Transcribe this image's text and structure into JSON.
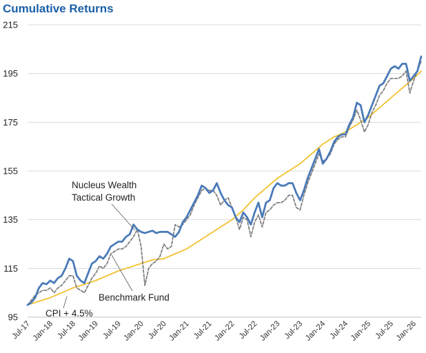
{
  "chart_data": {
    "type": "line",
    "title": "Cumulative Returns",
    "xlabel": "",
    "ylabel": "",
    "ylim": [
      95,
      215
    ],
    "yticks": [
      95,
      115,
      135,
      155,
      175,
      195,
      215
    ],
    "x_tick_labels": [
      "Jul-17",
      "Jan-18",
      "Jul-18",
      "Jan-19",
      "Jul-19",
      "Jan-20",
      "Jul-20",
      "Jan-21",
      "Jul-21",
      "Jan-22",
      "Jul-22",
      "Jan-23",
      "Jul-23",
      "Jan-24",
      "Jul-24",
      "Jan-25",
      "Jul-25",
      "Jan-26"
    ],
    "grid": "horizontal",
    "colors": {
      "nucleus": "#4a7ab8",
      "benchmark": "#7f7f7f",
      "cpi": "#f2c12e",
      "title": "#1a5fa8",
      "grid": "#d9d9d9"
    },
    "annotations": [
      {
        "text": "Nucleus Wealth",
        "series": "Nucleus Wealth Tactical Growth"
      },
      {
        "text": "Tactical Growth",
        "series": "Nucleus Wealth Tactical Growth"
      },
      {
        "text": "Benchmark Fund",
        "series": "Benchmark Fund"
      },
      {
        "text": "CPI + 4.5%",
        "series": "CPI + 4.5%"
      }
    ],
    "series": [
      {
        "name": "Nucleus Wealth Tactical Growth",
        "style": "solid",
        "points": [
          [
            "Jul-17",
            100
          ],
          [
            "Aug-17",
            101
          ],
          [
            "Sep-17",
            103
          ],
          [
            "Oct-17",
            107
          ],
          [
            "Nov-17",
            109
          ],
          [
            "Dec-17",
            108.5
          ],
          [
            "Jan-18",
            110
          ],
          [
            "Feb-18",
            109
          ],
          [
            "Mar-18",
            111
          ],
          [
            "Apr-18",
            112
          ],
          [
            "May-18",
            115
          ],
          [
            "Jun-18",
            119
          ],
          [
            "Jul-18",
            118
          ],
          [
            "Aug-18",
            112
          ],
          [
            "Sep-18",
            110
          ],
          [
            "Oct-18",
            109
          ],
          [
            "Nov-18",
            113
          ],
          [
            "Dec-18",
            117
          ],
          [
            "Jan-19",
            118
          ],
          [
            "Feb-19",
            120
          ],
          [
            "Mar-19",
            119
          ],
          [
            "Apr-19",
            121
          ],
          [
            "May-19",
            124
          ],
          [
            "Jun-19",
            125
          ],
          [
            "Jul-19",
            126
          ],
          [
            "Aug-19",
            126
          ],
          [
            "Sep-19",
            128
          ],
          [
            "Oct-19",
            129
          ],
          [
            "Nov-19",
            133
          ],
          [
            "Dec-19",
            131
          ],
          [
            "Jan-20",
            130
          ],
          [
            "Feb-20",
            129.5
          ],
          [
            "Mar-20",
            130
          ],
          [
            "Apr-20",
            130.5
          ],
          [
            "May-20",
            129.5
          ],
          [
            "Jun-20",
            130
          ],
          [
            "Jul-20",
            130
          ],
          [
            "Aug-20",
            130
          ],
          [
            "Sep-20",
            129
          ],
          [
            "Oct-20",
            128
          ],
          [
            "Nov-20",
            130
          ],
          [
            "Dec-20",
            134
          ],
          [
            "Jan-21",
            136
          ],
          [
            "Feb-21",
            139
          ],
          [
            "Mar-21",
            142
          ],
          [
            "Apr-21",
            145
          ],
          [
            "May-21",
            149
          ],
          [
            "Jun-21",
            148
          ],
          [
            "Jul-21",
            146
          ],
          [
            "Aug-21",
            147
          ],
          [
            "Sep-21",
            150
          ],
          [
            "Oct-21",
            146
          ],
          [
            "Nov-21",
            143
          ],
          [
            "Dec-21",
            141
          ],
          [
            "Jan-22",
            140
          ],
          [
            "Feb-22",
            136
          ],
          [
            "Mar-22",
            134
          ],
          [
            "Apr-22",
            138
          ],
          [
            "May-22",
            136
          ],
          [
            "Jun-22",
            133
          ],
          [
            "Jul-22",
            138
          ],
          [
            "Aug-22",
            142
          ],
          [
            "Sep-22",
            136
          ],
          [
            "Oct-22",
            142
          ],
          [
            "Nov-22",
            143
          ],
          [
            "Dec-22",
            148
          ],
          [
            "Jan-23",
            150
          ],
          [
            "Feb-23",
            149
          ],
          [
            "Mar-23",
            149
          ],
          [
            "Apr-23",
            150
          ],
          [
            "May-23",
            150
          ],
          [
            "Jun-23",
            146
          ],
          [
            "Jul-23",
            143
          ],
          [
            "Aug-23",
            147
          ],
          [
            "Sep-23",
            152
          ],
          [
            "Oct-23",
            156
          ],
          [
            "Nov-23",
            160
          ],
          [
            "Dec-23",
            164
          ],
          [
            "Jan-24",
            158
          ],
          [
            "Feb-24",
            160
          ],
          [
            "Mar-24",
            163
          ],
          [
            "Apr-24",
            167
          ],
          [
            "May-24",
            169
          ],
          [
            "Jun-24",
            170
          ],
          [
            "Jul-24",
            170
          ],
          [
            "Aug-24",
            174
          ],
          [
            "Sep-24",
            177
          ],
          [
            "Oct-24",
            183
          ],
          [
            "Nov-24",
            182
          ],
          [
            "Dec-24",
            175
          ],
          [
            "Jan-25",
            178
          ],
          [
            "Feb-25",
            182
          ],
          [
            "Mar-25",
            186
          ],
          [
            "Apr-25",
            190
          ],
          [
            "May-25",
            191
          ],
          [
            "Jun-25",
            194
          ],
          [
            "Jul-25",
            197
          ],
          [
            "Aug-25",
            198
          ],
          [
            "Sep-25",
            197
          ],
          [
            "Oct-25",
            199
          ],
          [
            "Nov-25",
            199
          ],
          [
            "Dec-25",
            192
          ],
          [
            "Jan-26",
            194
          ],
          [
            "Feb-26",
            196
          ],
          [
            "Mar-26",
            202
          ]
        ]
      },
      {
        "name": "Benchmark Fund",
        "style": "dashed",
        "points": [
          [
            "Jul-17",
            100
          ],
          [
            "Aug-17",
            102
          ],
          [
            "Sep-17",
            104
          ],
          [
            "Oct-17",
            105
          ],
          [
            "Nov-17",
            106
          ],
          [
            "Dec-17",
            106
          ],
          [
            "Jan-18",
            107
          ],
          [
            "Feb-18",
            105
          ],
          [
            "Mar-18",
            107
          ],
          [
            "Apr-18",
            108
          ],
          [
            "May-18",
            110
          ],
          [
            "Jun-18",
            112
          ],
          [
            "Jul-18",
            112
          ],
          [
            "Aug-18",
            107
          ],
          [
            "Sep-18",
            106
          ],
          [
            "Oct-18",
            105
          ],
          [
            "Nov-18",
            108
          ],
          [
            "Dec-18",
            111
          ],
          [
            "Jan-19",
            113
          ],
          [
            "Feb-19",
            116
          ],
          [
            "Mar-19",
            115
          ],
          [
            "Apr-19",
            117
          ],
          [
            "May-19",
            121
          ],
          [
            "Jun-19",
            122
          ],
          [
            "Jul-19",
            123
          ],
          [
            "Aug-19",
            123
          ],
          [
            "Sep-19",
            124
          ],
          [
            "Oct-19",
            126
          ],
          [
            "Nov-19",
            128
          ],
          [
            "Dec-19",
            131
          ],
          [
            "Jan-20",
            124
          ],
          [
            "Feb-20",
            108
          ],
          [
            "Mar-20",
            115
          ],
          [
            "Apr-20",
            117
          ],
          [
            "May-20",
            118
          ],
          [
            "Jun-20",
            120
          ],
          [
            "Jul-20",
            125
          ],
          [
            "Aug-20",
            123
          ],
          [
            "Sep-20",
            124
          ],
          [
            "Oct-20",
            133
          ],
          [
            "Nov-20",
            132
          ],
          [
            "Dec-20",
            133
          ],
          [
            "Jan-21",
            135
          ],
          [
            "Feb-21",
            137
          ],
          [
            "Mar-21",
            141
          ],
          [
            "Apr-21",
            144
          ],
          [
            "May-21",
            147
          ],
          [
            "Jun-21",
            148
          ],
          [
            "Jul-21",
            147
          ],
          [
            "Aug-21",
            147
          ],
          [
            "Sep-21",
            145
          ],
          [
            "Oct-21",
            141
          ],
          [
            "Nov-21",
            143
          ],
          [
            "Dec-21",
            144
          ],
          [
            "Jan-22",
            140
          ],
          [
            "Feb-22",
            136
          ],
          [
            "Mar-22",
            131
          ],
          [
            "Apr-22",
            136
          ],
          [
            "May-22",
            135
          ],
          [
            "Jun-22",
            128
          ],
          [
            "Jul-22",
            134
          ],
          [
            "Aug-22",
            137
          ],
          [
            "Sep-22",
            132
          ],
          [
            "Oct-22",
            138
          ],
          [
            "Nov-22",
            139
          ],
          [
            "Dec-22",
            141
          ],
          [
            "Jan-23",
            142
          ],
          [
            "Feb-23",
            142
          ],
          [
            "Mar-23",
            143
          ],
          [
            "Apr-23",
            145
          ],
          [
            "May-23",
            145
          ],
          [
            "Jun-23",
            140
          ],
          [
            "Jul-23",
            139
          ],
          [
            "Aug-23",
            145
          ],
          [
            "Sep-23",
            150
          ],
          [
            "Oct-23",
            154
          ],
          [
            "Nov-23",
            158
          ],
          [
            "Dec-23",
            162
          ],
          [
            "Jan-24",
            159
          ],
          [
            "Feb-24",
            160
          ],
          [
            "Mar-24",
            162
          ],
          [
            "Apr-24",
            166
          ],
          [
            "May-24",
            168
          ],
          [
            "Jun-24",
            169
          ],
          [
            "Jul-24",
            169
          ],
          [
            "Aug-24",
            173
          ],
          [
            "Sep-24",
            176
          ],
          [
            "Oct-24",
            180
          ],
          [
            "Nov-24",
            176
          ],
          [
            "Dec-24",
            171
          ],
          [
            "Jan-25",
            174
          ],
          [
            "Feb-25",
            179
          ],
          [
            "Mar-25",
            182
          ],
          [
            "Apr-25",
            186
          ],
          [
            "May-25",
            188
          ],
          [
            "Jun-25",
            191
          ],
          [
            "Jul-25",
            193
          ],
          [
            "Aug-25",
            193
          ],
          [
            "Sep-25",
            193
          ],
          [
            "Oct-25",
            194
          ],
          [
            "Nov-25",
            196
          ],
          [
            "Dec-25",
            187
          ],
          [
            "Jan-26",
            192
          ],
          [
            "Feb-26",
            196
          ],
          [
            "Mar-26",
            200
          ]
        ]
      },
      {
        "name": "CPI + 4.5%",
        "style": "solid",
        "points": [
          [
            "Jul-17",
            100
          ],
          [
            "Oct-17",
            101.5
          ],
          [
            "Jan-18",
            103
          ],
          [
            "Apr-18",
            105
          ],
          [
            "Jul-18",
            107
          ],
          [
            "Oct-18",
            108.5
          ],
          [
            "Jan-19",
            110
          ],
          [
            "Apr-19",
            112
          ],
          [
            "Jul-19",
            114
          ],
          [
            "Oct-19",
            115.5
          ],
          [
            "Jan-20",
            117
          ],
          [
            "Apr-20",
            118.5
          ],
          [
            "Jul-20",
            119
          ],
          [
            "Oct-20",
            121
          ],
          [
            "Jan-21",
            123
          ],
          [
            "Apr-21",
            126
          ],
          [
            "Jul-21",
            129
          ],
          [
            "Oct-21",
            132
          ],
          [
            "Jan-22",
            135
          ],
          [
            "Apr-22",
            139
          ],
          [
            "Jul-22",
            144
          ],
          [
            "Oct-22",
            148
          ],
          [
            "Jan-23",
            152
          ],
          [
            "Apr-23",
            155
          ],
          [
            "Jul-23",
            158
          ],
          [
            "Oct-23",
            162
          ],
          [
            "Jan-24",
            166
          ],
          [
            "Apr-24",
            169
          ],
          [
            "Jul-24",
            171
          ],
          [
            "Oct-24",
            174
          ],
          [
            "Jan-25",
            177
          ],
          [
            "Apr-25",
            181
          ],
          [
            "Jul-25",
            185
          ],
          [
            "Oct-25",
            189
          ],
          [
            "Jan-26",
            193
          ],
          [
            "Mar-26",
            196
          ]
        ]
      }
    ]
  }
}
